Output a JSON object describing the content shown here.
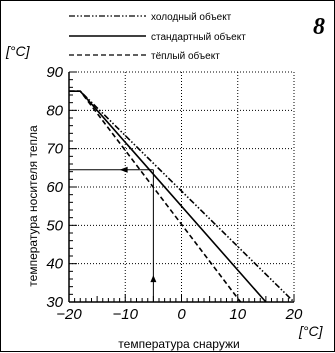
{
  "figure_number": "8",
  "chart_data": {
    "type": "line",
    "xlabel": "температура снаружи",
    "ylabel": "температура носителя тепла",
    "x_unit": "[°C]",
    "y_unit": "[°C]",
    "xlim": [
      -20,
      20
    ],
    "ylim": [
      30,
      90
    ],
    "x_ticks": [
      "−20",
      "−10",
      "0",
      "10",
      "20"
    ],
    "y_ticks": [
      "30",
      "40",
      "50",
      "60",
      "70",
      "80",
      "90"
    ],
    "grid": true,
    "legend_position": "top",
    "series": [
      {
        "name": "холодный объект",
        "style": "dash-dot-dot",
        "x": [
          -20,
          -18,
          20
        ],
        "y": [
          85,
          85,
          30
        ]
      },
      {
        "name": "стандартный объект",
        "style": "solid",
        "x": [
          -20,
          -18,
          15
        ],
        "y": [
          85,
          85,
          30
        ]
      },
      {
        "name": "тёплый объект",
        "style": "dashed",
        "x": [
          -20,
          -18,
          10.5
        ],
        "y": [
          85,
          85,
          30
        ]
      }
    ],
    "example_arrow": {
      "outside_temperature": -5,
      "heating_temperature": 64.5
    }
  }
}
